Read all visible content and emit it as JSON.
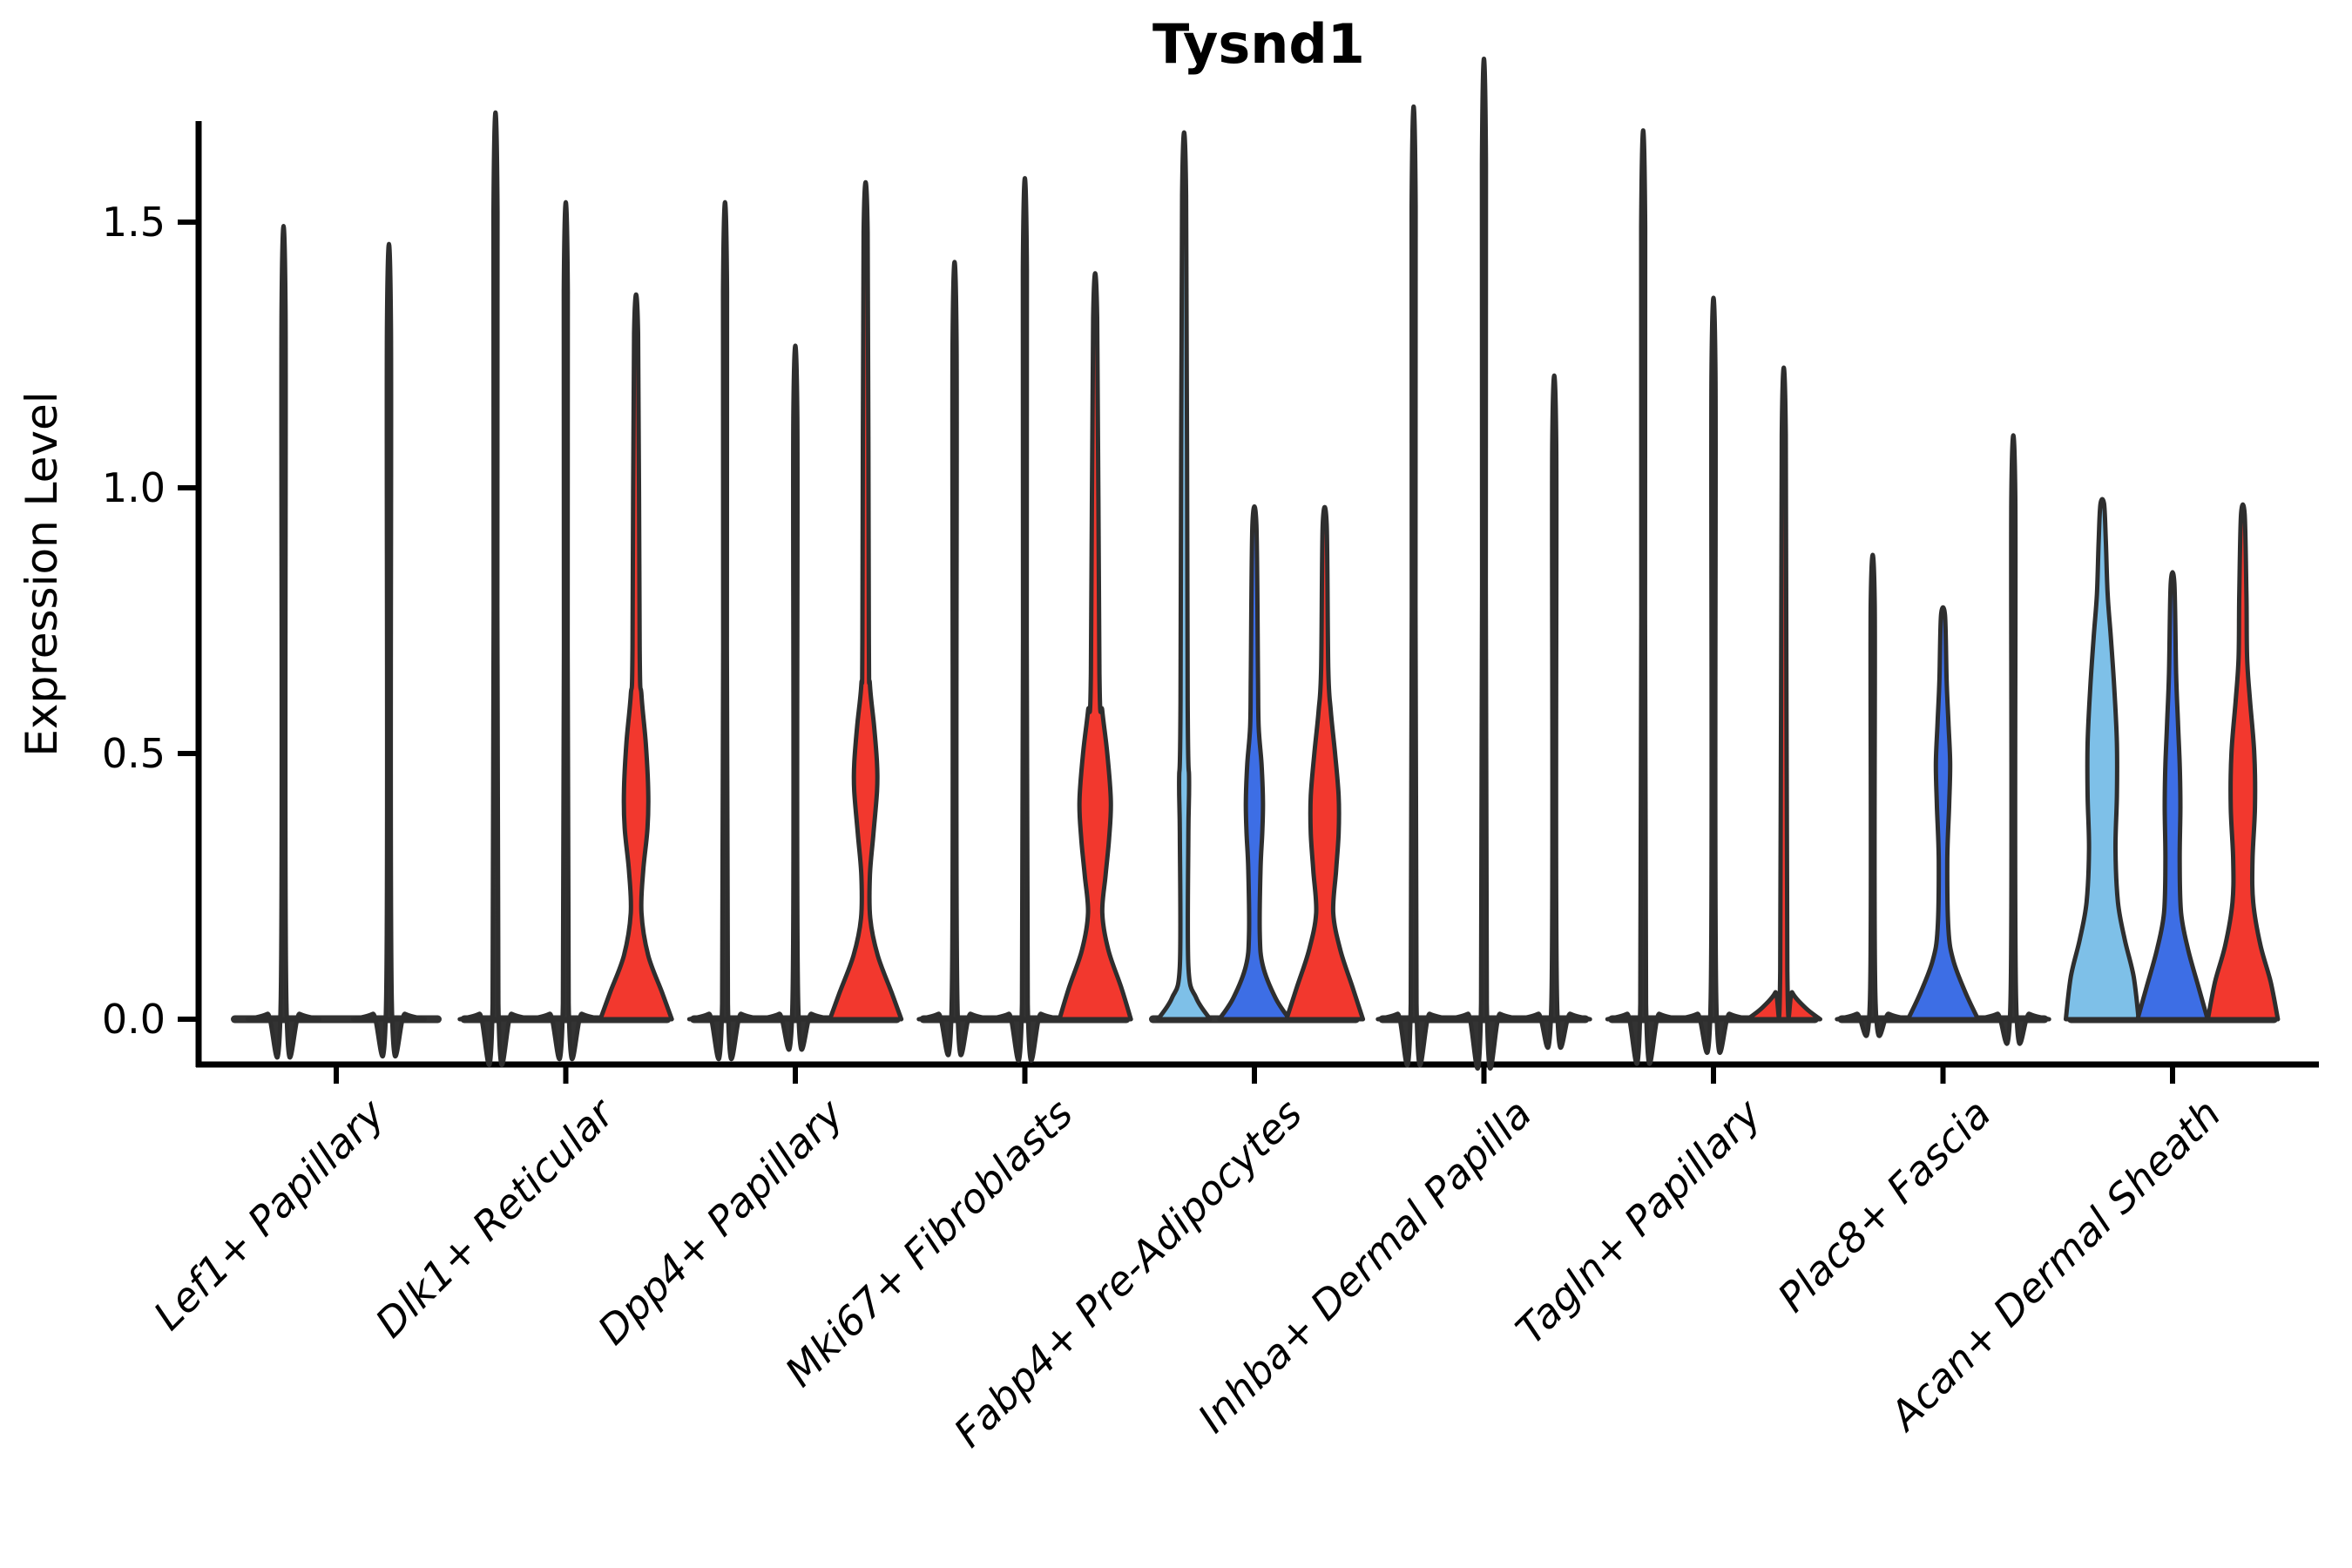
{
  "chart_data": {
    "type": "violin",
    "title": "Tysnd1",
    "ylabel": "Expression Level",
    "xlabel": "",
    "yticks": [
      "0.0",
      "0.5",
      "1.0",
      "1.5"
    ],
    "ytick_values": [
      0,
      0.5,
      1.0,
      1.5
    ],
    "ylim": [
      0,
      1.69
    ],
    "grid": "off",
    "legend": "none",
    "palette": {
      "lightblue": "#7EC0E8",
      "blue": "#3D6EE5",
      "red": "#F2382E",
      "dark": "#333333",
      "edge": "#2E2E2E",
      "axis": "#000000"
    },
    "categories": [
      "Lef1+ Papillary",
      "Dlk1+ Reticular",
      "Dpp4+ Papillary",
      "Mki67+ Fibroblasts",
      "Fabp4+ Pre-Adipocytes",
      "Inhba+ Dermal Papilla",
      "Tagln+ Papillary",
      "Plac8+ Fascia",
      "Acan+ Dermal Sheath"
    ],
    "groups": [
      {
        "category": "Lef1+ Papillary",
        "violins": [
          {
            "color": "dark",
            "max": 1.33,
            "profile": [
              [
                0,
                1
              ],
              [
                0.01,
                0.45
              ],
              [
                0.03,
                0.08
              ],
              [
                1.33,
                0.055
              ]
            ]
          },
          {
            "color": "dark",
            "max": 1.3,
            "profile": [
              [
                0,
                1
              ],
              [
                0.01,
                0.45
              ],
              [
                0.03,
                0.08
              ],
              [
                1.3,
                0.055
              ]
            ]
          }
        ]
      },
      {
        "category": "Dlk1+ Reticular",
        "violins": [
          {
            "color": "dark",
            "max": 1.52,
            "profile": [
              [
                0,
                1
              ],
              [
                0.01,
                0.45
              ],
              [
                0.03,
                0.08
              ],
              [
                1.52,
                0.055
              ]
            ]
          },
          {
            "color": "dark",
            "max": 1.37,
            "profile": [
              [
                0,
                1
              ],
              [
                0.01,
                0.45
              ],
              [
                0.03,
                0.08
              ],
              [
                1.37,
                0.055
              ]
            ]
          },
          {
            "color": "red",
            "max": 1.29,
            "profile": [
              [
                0,
                1
              ],
              [
                0.05,
                0.73
              ],
              [
                0.12,
                0.34
              ],
              [
                0.2,
                0.15
              ],
              [
                0.28,
                0.2
              ],
              [
                0.36,
                0.32
              ],
              [
                0.43,
                0.34
              ],
              [
                0.52,
                0.27
              ],
              [
                0.61,
                0.15
              ],
              [
                0.7,
                0.1
              ],
              [
                1.29,
                0.055
              ]
            ]
          }
        ]
      },
      {
        "category": "Dpp4+ Papillary",
        "violins": [
          {
            "color": "dark",
            "max": 1.37,
            "profile": [
              [
                0,
                1
              ],
              [
                0.01,
                0.45
              ],
              [
                0.03,
                0.08
              ],
              [
                1.37,
                0.055
              ]
            ]
          },
          {
            "color": "dark",
            "max": 1.13,
            "profile": [
              [
                0,
                1
              ],
              [
                0.01,
                0.45
              ],
              [
                0.03,
                0.08
              ],
              [
                1.13,
                0.055
              ]
            ]
          },
          {
            "color": "red",
            "max": 1.48,
            "profile": [
              [
                0,
                1
              ],
              [
                0.05,
                0.73
              ],
              [
                0.12,
                0.34
              ],
              [
                0.19,
                0.13
              ],
              [
                0.27,
                0.12
              ],
              [
                0.35,
                0.22
              ],
              [
                0.43,
                0.32
              ],
              [
                0.48,
                0.32
              ],
              [
                0.55,
                0.24
              ],
              [
                0.63,
                0.12
              ],
              [
                0.72,
                0.09
              ],
              [
                1.48,
                0.055
              ]
            ]
          }
        ]
      },
      {
        "category": "Mki67+ Fibroblasts",
        "violins": [
          {
            "color": "dark",
            "max": 1.27,
            "profile": [
              [
                0,
                1
              ],
              [
                0.01,
                0.45
              ],
              [
                0.03,
                0.08
              ],
              [
                1.27,
                0.055
              ]
            ]
          },
          {
            "color": "dark",
            "max": 1.41,
            "profile": [
              [
                0,
                1
              ],
              [
                0.01,
                0.45
              ],
              [
                0.03,
                0.08
              ],
              [
                1.41,
                0.055
              ]
            ]
          },
          {
            "color": "red",
            "max": 1.32,
            "profile": [
              [
                0,
                1
              ],
              [
                0.06,
                0.73
              ],
              [
                0.13,
                0.37
              ],
              [
                0.2,
                0.2
              ],
              [
                0.27,
                0.29
              ],
              [
                0.34,
                0.39
              ],
              [
                0.41,
                0.44
              ],
              [
                0.5,
                0.34
              ],
              [
                0.58,
                0.2
              ],
              [
                0.65,
                0.12
              ],
              [
                1.32,
                0.055
              ]
            ]
          }
        ]
      },
      {
        "category": "Fabp4+ Pre-Adipocytes",
        "violins": [
          {
            "color": "lightblue",
            "max": 1.55,
            "profile": [
              [
                0,
                0.73
              ],
              [
                0.04,
                0.34
              ],
              [
                0.1,
                0.12
              ],
              [
                0.35,
                0.12
              ],
              [
                0.45,
                0.14
              ],
              [
                0.6,
                0.1
              ],
              [
                1.55,
                0.055
              ]
            ]
          },
          {
            "color": "blue",
            "max": 0.93,
            "profile": [
              [
                0,
                0.98
              ],
              [
                0.04,
                0.59
              ],
              [
                0.1,
                0.24
              ],
              [
                0.16,
                0.15
              ],
              [
                0.28,
                0.17
              ],
              [
                0.35,
                0.22
              ],
              [
                0.41,
                0.24
              ],
              [
                0.48,
                0.2
              ],
              [
                0.55,
                0.12
              ],
              [
                0.65,
                0.1
              ],
              [
                0.93,
                0.055
              ]
            ]
          },
          {
            "color": "red",
            "max": 0.93,
            "profile": [
              [
                0,
                1.07
              ],
              [
                0.06,
                0.78
              ],
              [
                0.13,
                0.44
              ],
              [
                0.2,
                0.24
              ],
              [
                0.28,
                0.32
              ],
              [
                0.35,
                0.39
              ],
              [
                0.42,
                0.39
              ],
              [
                0.5,
                0.29
              ],
              [
                0.58,
                0.17
              ],
              [
                0.66,
                0.1
              ],
              [
                0.93,
                0.055
              ]
            ]
          }
        ]
      },
      {
        "category": "Inhba+ Dermal Papilla",
        "violins": [
          {
            "color": "dark",
            "max": 1.53,
            "profile": [
              [
                0,
                1
              ],
              [
                0.01,
                0.45
              ],
              [
                0.03,
                0.08
              ],
              [
                1.53,
                0.055
              ]
            ]
          },
          {
            "color": "dark",
            "max": 1.61,
            "profile": [
              [
                0,
                1
              ],
              [
                0.01,
                0.45
              ],
              [
                0.03,
                0.08
              ],
              [
                1.61,
                0.055
              ]
            ]
          },
          {
            "color": "dark",
            "max": 1.08,
            "profile": [
              [
                0,
                1
              ],
              [
                0.01,
                0.45
              ],
              [
                0.03,
                0.08
              ],
              [
                1.08,
                0.055
              ]
            ]
          }
        ]
      },
      {
        "category": "Tagln+ Papillary",
        "violins": [
          {
            "color": "dark",
            "max": 1.49,
            "profile": [
              [
                0,
                1
              ],
              [
                0.01,
                0.45
              ],
              [
                0.03,
                0.08
              ],
              [
                1.49,
                0.055
              ]
            ]
          },
          {
            "color": "dark",
            "max": 1.21,
            "profile": [
              [
                0,
                1
              ],
              [
                0.01,
                0.45
              ],
              [
                0.03,
                0.08
              ],
              [
                1.21,
                0.055
              ]
            ]
          },
          {
            "color": "red",
            "max": 1.1,
            "profile": [
              [
                0,
                1.02
              ],
              [
                0.02,
                0.63
              ],
              [
                0.05,
                0.24
              ],
              [
                0.09,
                0.1
              ],
              [
                1.1,
                0.055
              ]
            ]
          }
        ]
      },
      {
        "category": "Plac8+ Fascia",
        "violins": [
          {
            "color": "dark",
            "max": 0.78,
            "profile": [
              [
                0,
                1
              ],
              [
                0.01,
                0.45
              ],
              [
                0.03,
                0.08
              ],
              [
                0.78,
                0.055
              ]
            ]
          },
          {
            "color": "blue",
            "max": 0.76,
            "profile": [
              [
                0,
                0.98
              ],
              [
                0.05,
                0.63
              ],
              [
                0.11,
                0.29
              ],
              [
                0.17,
                0.15
              ],
              [
                0.3,
                0.12
              ],
              [
                0.4,
                0.17
              ],
              [
                0.48,
                0.2
              ],
              [
                0.56,
                0.15
              ],
              [
                0.64,
                0.1
              ],
              [
                0.76,
                0.055
              ]
            ]
          },
          {
            "color": "dark",
            "max": 0.98,
            "profile": [
              [
                0,
                1
              ],
              [
                0.01,
                0.45
              ],
              [
                0.03,
                0.08
              ],
              [
                0.98,
                0.055
              ]
            ]
          }
        ]
      },
      {
        "category": "Acan+ Dermal Sheath",
        "violins": [
          {
            "color": "lightblue",
            "max": 0.97,
            "profile": [
              [
                0,
                1.02
              ],
              [
                0.08,
                0.88
              ],
              [
                0.15,
                0.63
              ],
              [
                0.22,
                0.44
              ],
              [
                0.32,
                0.37
              ],
              [
                0.42,
                0.41
              ],
              [
                0.52,
                0.41
              ],
              [
                0.62,
                0.34
              ],
              [
                0.72,
                0.24
              ],
              [
                0.8,
                0.15
              ],
              [
                0.9,
                0.1
              ],
              [
                0.97,
                0.05
              ]
            ]
          },
          {
            "color": "blue",
            "max": 0.82,
            "profile": [
              [
                0,
                0.98
              ],
              [
                0.06,
                0.73
              ],
              [
                0.13,
                0.44
              ],
              [
                0.2,
                0.24
              ],
              [
                0.3,
                0.2
              ],
              [
                0.4,
                0.22
              ],
              [
                0.48,
                0.2
              ],
              [
                0.56,
                0.15
              ],
              [
                0.65,
                0.1
              ],
              [
                0.82,
                0.05
              ]
            ]
          },
          {
            "color": "red",
            "max": 0.95,
            "profile": [
              [
                0,
                0.98
              ],
              [
                0.07,
                0.78
              ],
              [
                0.14,
                0.49
              ],
              [
                0.22,
                0.29
              ],
              [
                0.3,
                0.27
              ],
              [
                0.4,
                0.34
              ],
              [
                0.5,
                0.32
              ],
              [
                0.6,
                0.2
              ],
              [
                0.68,
                0.12
              ],
              [
                0.8,
                0.1
              ],
              [
                0.95,
                0.05
              ]
            ]
          }
        ]
      }
    ]
  }
}
